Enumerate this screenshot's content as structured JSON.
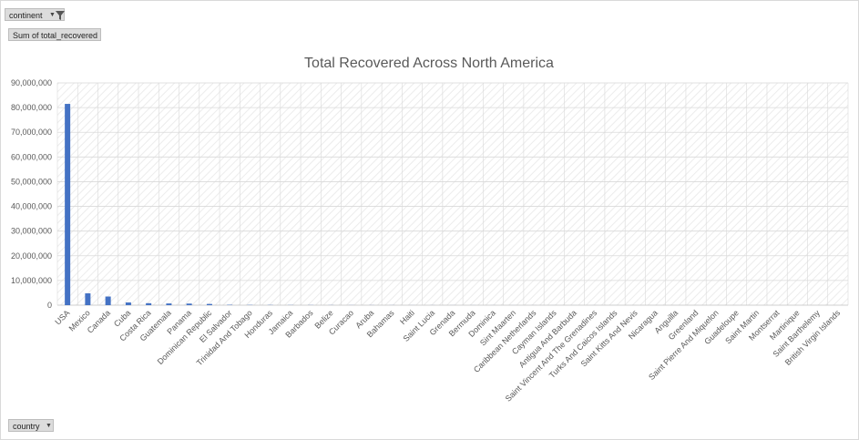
{
  "filters": {
    "continent_label": "continent",
    "sum_label": "Sum of total_recovered",
    "country_label": "country"
  },
  "colors": {
    "bar": "#4472c4",
    "grid": "#d9d9d9",
    "text": "#595959"
  },
  "chart_data": {
    "type": "bar",
    "title": "Total Recovered Across North America",
    "xlabel": "",
    "ylabel": "",
    "ylim": [
      0,
      90000000
    ],
    "yticks": [
      0,
      10000000,
      20000000,
      30000000,
      40000000,
      50000000,
      60000000,
      70000000,
      80000000,
      90000000
    ],
    "ytick_labels": [
      "0",
      "10,000,000",
      "20,000,000",
      "30,000,000",
      "40,000,000",
      "50,000,000",
      "60,000,000",
      "70,000,000",
      "80,000,000",
      "90,000,000"
    ],
    "categories": [
      "USA",
      "Mexico",
      "Canada",
      "Cuba",
      "Costa Rica",
      "Guatemala",
      "Panama",
      "Dominican Republic",
      "El Salvador",
      "Trinidad And Tobago",
      "Honduras",
      "Jamaica",
      "Barbados",
      "Belize",
      "Curacao",
      "Aruba",
      "Bahamas",
      "Haiti",
      "Saint Lucia",
      "Grenada",
      "Bermuda",
      "Dominica",
      "Sint Maarten",
      "Caribbean Netherlands",
      "Cayman Islands",
      "Antigua And Barbuda",
      "Saint Vincent And The Grenadines",
      "Turks And Caicos Islands",
      "Saint Kitts And Nevis",
      "Nicaragua",
      "Anguilla",
      "Greenland",
      "Saint Pierre And Miquelon",
      "Guadeloupe",
      "Saint Martin",
      "Montserrat",
      "Martinique",
      "Saint Barthelemy",
      "British Virgin Islands"
    ],
    "values": [
      81500000,
      4800000,
      3500000,
      1100000,
      800000,
      700000,
      650000,
      500000,
      150000,
      100000,
      80000,
      60000,
      50000,
      40000,
      35000,
      30000,
      25000,
      20000,
      18000,
      15000,
      12000,
      10000,
      9000,
      8000,
      7000,
      6000,
      5000,
      4000,
      3500,
      3000,
      2500,
      2000,
      1500,
      1200,
      1000,
      800,
      600,
      500,
      400
    ]
  }
}
